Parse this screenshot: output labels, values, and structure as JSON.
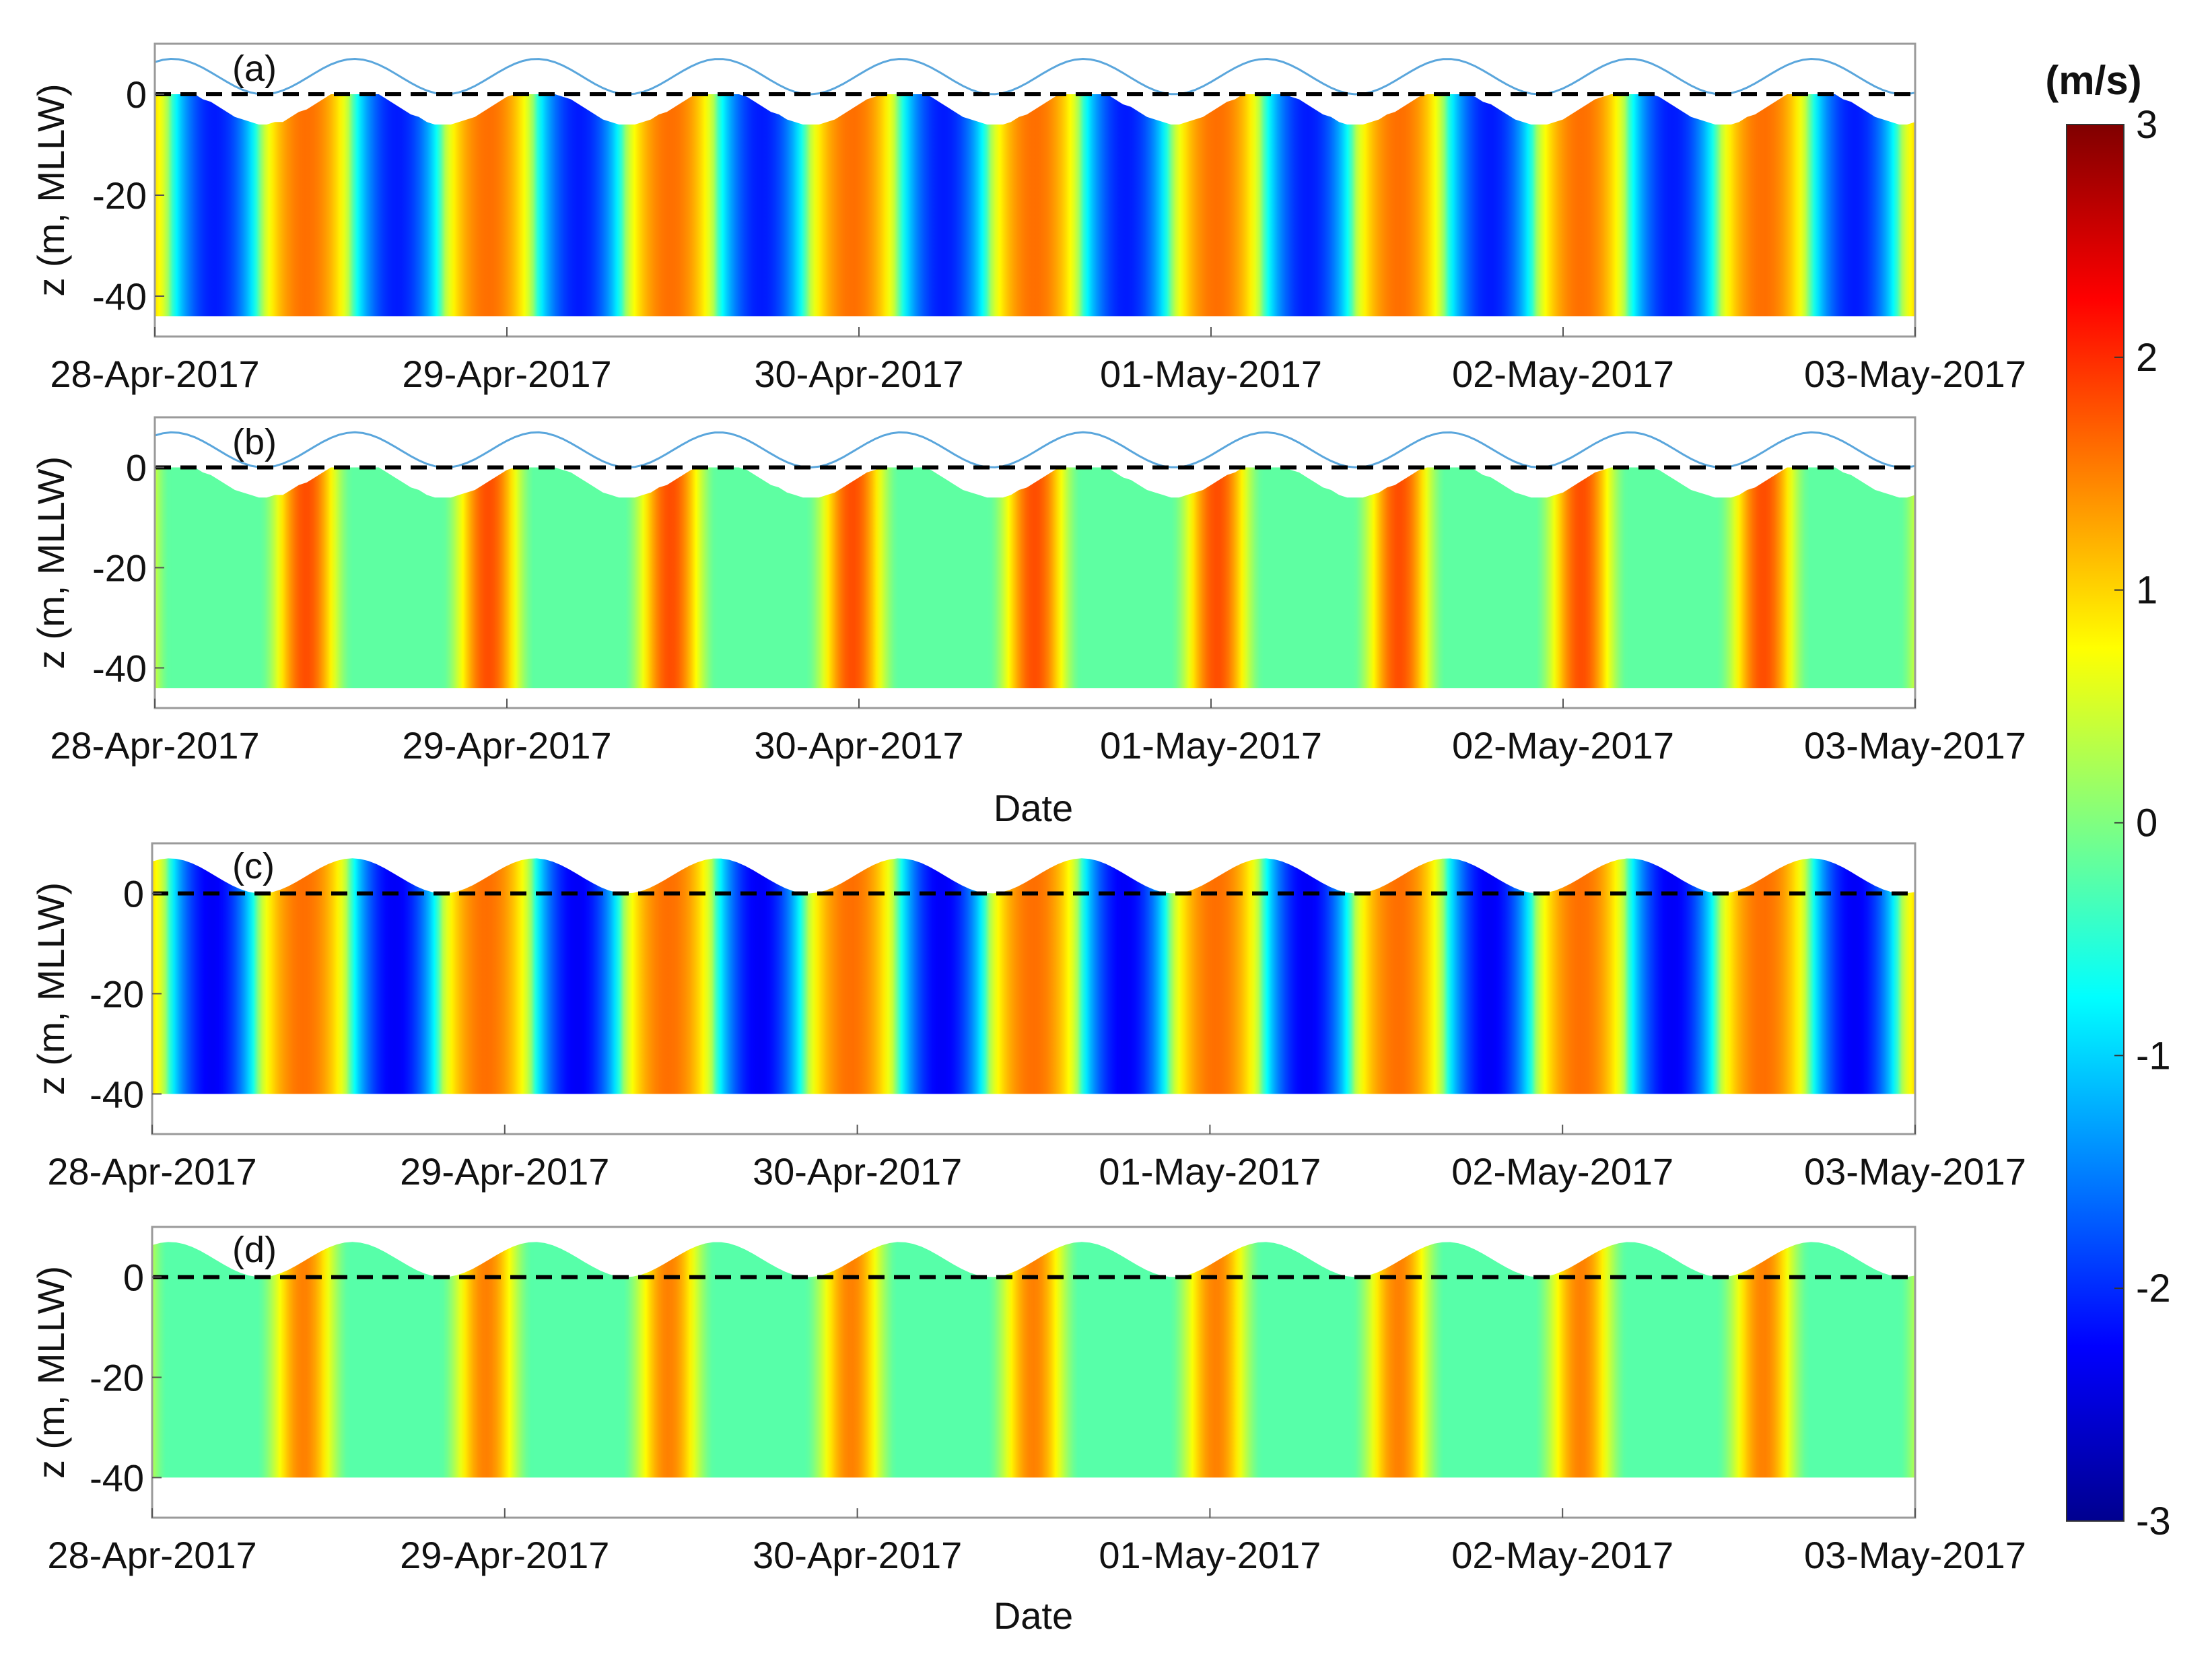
{
  "figure": {
    "colorbar": {
      "unit_label": "(m/s)",
      "range": [
        -3,
        3
      ],
      "ticks": [
        "3",
        "2",
        "1",
        "0",
        "-1",
        "-2",
        "-3"
      ],
      "colormap": "jet",
      "stops": [
        "#00008f",
        "#0000ff",
        "#0080ff",
        "#00ffff",
        "#80ff80",
        "#ffff00",
        "#ff8000",
        "#ff0000",
        "#800000"
      ]
    },
    "x_tick_labels": [
      "28-Apr-2017",
      "29-Apr-2017",
      "30-Apr-2017",
      "01-May-2017",
      "02-May-2017",
      "03-May-2017"
    ],
    "y_tick_labels": [
      "0",
      "-20",
      "-40"
    ],
    "ylabel": "z (m, MLLW)",
    "xlabel": "Date",
    "panel_labels": [
      "(a)",
      "(b)",
      "(c)",
      "(d)"
    ],
    "colors": {
      "tide_line": "#5aa6dc",
      "mllw_line": "#000000",
      "axis_frame": "#9a9a9a"
    }
  },
  "chart_data": [
    {
      "panel": "(a)",
      "type": "heatmap",
      "variable": "velocity (m/s)",
      "xlabel": "",
      "ylabel": "z (m, MLLW)",
      "x_range": [
        "2017-04-28",
        "2017-05-03"
      ],
      "ylim": [
        -48,
        10
      ],
      "yticks": [
        0,
        -20,
        -40
      ],
      "colorbar_range": [
        -3,
        3
      ],
      "surface_line": "tide curve (blue) over MLLW = 0 (dashed)",
      "tide_range_m": [
        0,
        7
      ],
      "max_velocity_est": 1.6,
      "min_velocity_est": -2.1,
      "bottom_m": -44,
      "pattern": "semidiurnal alternation, approx. 12.4 h period; flood ≈ +1.5 m/s, ebb ≈ -2.0 m/s"
    },
    {
      "panel": "(b)",
      "type": "heatmap",
      "variable": "velocity (m/s)",
      "xlabel": "Date",
      "ylabel": "z (m, MLLW)",
      "x_range": [
        "2017-04-28",
        "2017-05-03"
      ],
      "ylim": [
        -48,
        10
      ],
      "yticks": [
        0,
        -20,
        -40
      ],
      "colorbar_range": [
        -3,
        3
      ],
      "surface_line": "tide curve (blue) over MLLW = 0 (dashed)",
      "tide_range_m": [
        0,
        7
      ],
      "max_velocity_est": 1.8,
      "min_velocity_est": -0.5,
      "bottom_m": -44,
      "pattern": "semidiurnal pulses of ≈ +1.8 m/s separated by near-zero (≈ -0.2 m/s) flow"
    },
    {
      "panel": "(c)",
      "type": "heatmap",
      "variable": "velocity (m/s)",
      "xlabel": "",
      "ylabel": "z (m, MLLW)",
      "x_range": [
        "2017-04-28",
        "2017-05-03"
      ],
      "ylim": [
        -48,
        10
      ],
      "yticks": [
        0,
        -20,
        -40
      ],
      "colorbar_range": [
        -3,
        3
      ],
      "surface_line": "modelled free surface over MLLW = 0 (dashed)",
      "tide_range_m": [
        0,
        7
      ],
      "max_velocity_est": 1.6,
      "min_velocity_est": -2.3,
      "bottom_m": -40,
      "pattern": "semidiurnal alternation, approx. 12.4 h period; flood ≈ +1.5 m/s, ebb ≈ -2.2 m/s"
    },
    {
      "panel": "(d)",
      "type": "heatmap",
      "variable": "velocity (m/s)",
      "xlabel": "Date",
      "ylabel": "z (m, MLLW)",
      "x_range": [
        "2017-04-28",
        "2017-05-03"
      ],
      "ylim": [
        -48,
        10
      ],
      "yticks": [
        0,
        -20,
        -40
      ],
      "colorbar_range": [
        -3,
        3
      ],
      "surface_line": "modelled free surface over MLLW = 0 (dashed)",
      "tide_range_m": [
        0,
        7
      ],
      "max_velocity_est": 1.5,
      "min_velocity_est": -0.6,
      "bottom_m": -40,
      "pattern": "semidiurnal pulses of ≈ +1.4 m/s separated by weak (≈ -0.5 m/s) flow"
    }
  ]
}
